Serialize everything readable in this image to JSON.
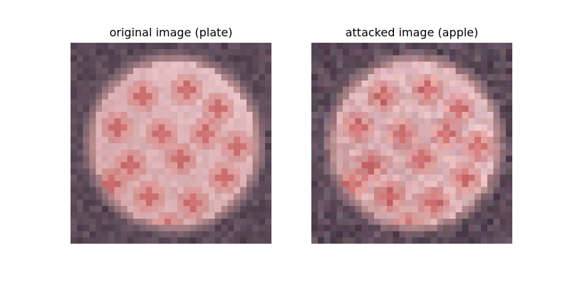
{
  "figure": {
    "panels": [
      {
        "title": "original image (plate)",
        "image": {
          "seed": 11,
          "noise": 14
        }
      },
      {
        "title": "attacked image (apple)",
        "image": {
          "seed": 37,
          "noise": 30
        }
      }
    ]
  },
  "palette": {
    "background_dark": "#4d3f4c",
    "background_mid": "#6a5563",
    "plate_rim": "#b98d8e",
    "plate_body": "#d6a8ab",
    "plate_highlight": "#e9c7cc",
    "topping": "#c85a5a",
    "topping_light": "#d57c78"
  }
}
